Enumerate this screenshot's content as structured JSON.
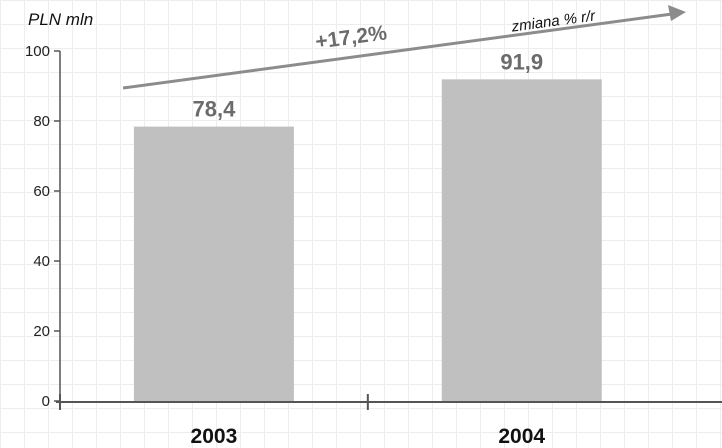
{
  "chart_data": {
    "type": "bar",
    "categories": [
      "2003",
      "2004"
    ],
    "values": [
      78.4,
      91.9
    ],
    "value_labels": [
      "78,4",
      "91,9"
    ],
    "ylabel": "PLN mln",
    "ylim": [
      0,
      100
    ],
    "yticks": [
      "0",
      "20",
      "40",
      "60",
      "80",
      "100"
    ],
    "grid": true,
    "bar_color": "#c0c0c0",
    "annotation": {
      "change_label": "+17,2%",
      "caption": "zmiana % r/r",
      "arrow_color": "#8c8c8c"
    }
  }
}
